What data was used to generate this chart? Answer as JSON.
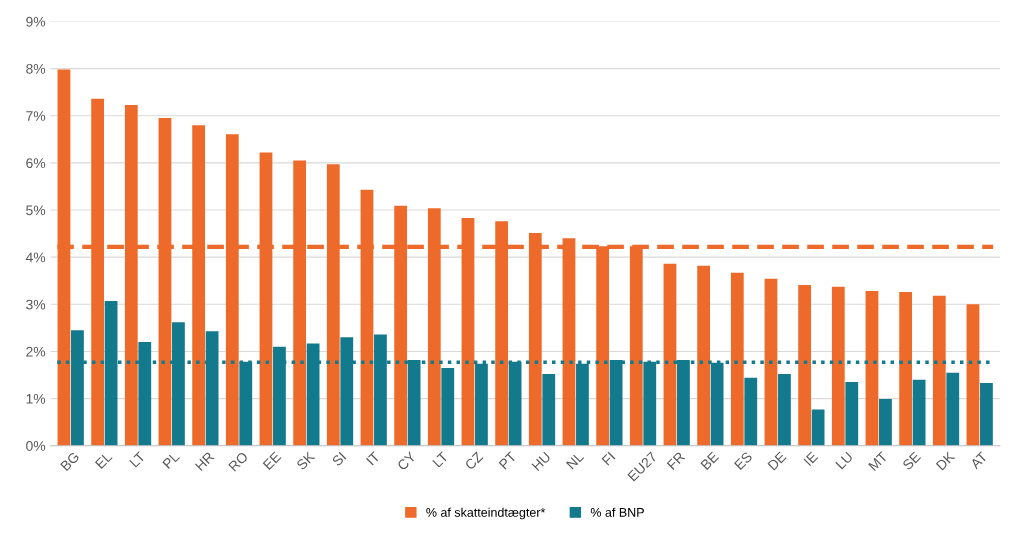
{
  "chart_data": {
    "type": "bar",
    "categories": [
      "BG",
      "EL",
      "LT",
      "PL",
      "HR",
      "RO",
      "EE",
      "SK",
      "SI",
      "IT",
      "CY",
      "LT",
      "CZ",
      "PT",
      "HU",
      "NL",
      "FI",
      "EU27",
      "FR",
      "BE",
      "ES",
      "DE",
      "IE",
      "LU",
      "MT",
      "SE",
      "DK",
      "AT"
    ],
    "series": [
      {
        "name": "% af skatteindtægter*",
        "color": "#ee6a2a",
        "values": [
          7.98,
          7.36,
          7.23,
          6.95,
          6.8,
          6.61,
          6.22,
          6.05,
          5.97,
          5.43,
          5.09,
          5.04,
          4.83,
          4.76,
          4.51,
          4.4,
          4.23,
          4.23,
          3.86,
          3.82,
          3.67,
          3.54,
          3.41,
          3.37,
          3.28,
          3.26,
          3.18,
          3.0
        ]
      },
      {
        "name": "% af BNP",
        "color": "#127a8c",
        "values": [
          2.45,
          3.07,
          2.2,
          2.62,
          2.43,
          1.78,
          2.1,
          2.17,
          2.3,
          2.36,
          1.82,
          1.65,
          1.74,
          1.78,
          1.52,
          1.74,
          1.82,
          1.78,
          1.82,
          1.76,
          1.44,
          1.52,
          0.77,
          1.35,
          0.99,
          1.4,
          1.55,
          1.33
        ]
      }
    ],
    "ylim": [
      0,
      9
    ],
    "yticks": [
      {
        "value": 0,
        "label": "0%"
      },
      {
        "value": 1,
        "label": "1%"
      },
      {
        "value": 2,
        "label": "2%"
      },
      {
        "value": 3,
        "label": "3%"
      },
      {
        "value": 4,
        "label": "4%"
      },
      {
        "value": 5,
        "label": "5%"
      },
      {
        "value": 6,
        "label": "6%"
      },
      {
        "value": 7,
        "label": "7%"
      },
      {
        "value": 8,
        "label": "8%"
      },
      {
        "value": 9,
        "label": "9%"
      }
    ],
    "ref_lines": [
      {
        "axis": "y",
        "value": 4.22,
        "color": "#ee6a2a",
        "line_style": "dashed"
      },
      {
        "axis": "y",
        "value": 1.77,
        "color": "#127a8c",
        "line_style": "dotted"
      }
    ],
    "grid": "y",
    "legend": "bottom"
  }
}
